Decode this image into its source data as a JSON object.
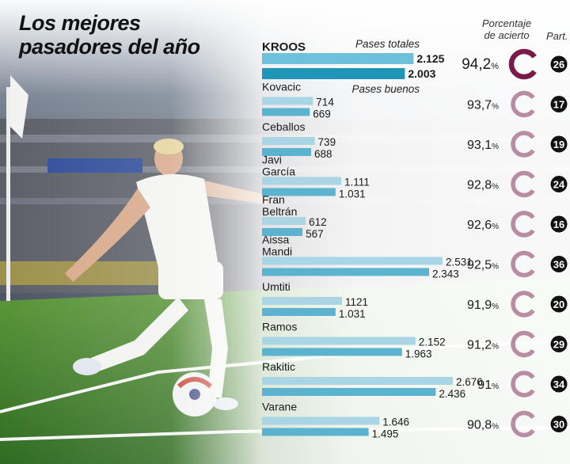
{
  "title_line1": "Los mejores",
  "title_line2": "pasadores del año",
  "headers": {
    "pct_line1": "Porcentaje",
    "pct_line2": "de acierto",
    "part": "Part."
  },
  "legend": {
    "total": "Pases totales",
    "good": "Pases buenos"
  },
  "colors": {
    "bar_total": "#a9d5e4",
    "bar_good": "#5cb3d0",
    "bar_total_highlight": "#6ec0db",
    "bar_good_highlight": "#1f96b8",
    "ring_highlight": "#7a1a49",
    "ring_default": "#b88da3"
  },
  "chart_data": {
    "type": "bar",
    "title": "Los mejores pasadores del año",
    "series": [
      {
        "name": "Pases totales",
        "values": [
          2125,
          714,
          739,
          1111,
          612,
          2531,
          1121,
          2152,
          2676,
          1646
        ]
      },
      {
        "name": "Pases buenos",
        "values": [
          2003,
          669,
          688,
          1031,
          567,
          2343,
          1031,
          1963,
          2436,
          1495
        ]
      }
    ],
    "categories": [
      "KROOS",
      "Kovacic",
      "Ceballos",
      "Javi García",
      "Fran Beltrán",
      "Aissa Mandi",
      "Umtiti",
      "Ramos",
      "Rakitic",
      "Varane"
    ],
    "players": [
      {
        "name_lines": [
          "KROOS"
        ],
        "total": 2125,
        "good": 2003,
        "total_label": "2.125",
        "good_label": "2.003",
        "pct": 94.2,
        "pct_label": "94,2",
        "matches": "26",
        "highlight": true
      },
      {
        "name_lines": [
          "Kovacic"
        ],
        "total": 714,
        "good": 669,
        "total_label": "714",
        "good_label": "669",
        "pct": 93.7,
        "pct_label": "93,7",
        "matches": "17",
        "highlight": false
      },
      {
        "name_lines": [
          "Ceballos"
        ],
        "total": 739,
        "good": 688,
        "total_label": "739",
        "good_label": "688",
        "pct": 93.1,
        "pct_label": "93,1",
        "matches": "19",
        "highlight": false
      },
      {
        "name_lines": [
          "Javi",
          "García"
        ],
        "total": 1111,
        "good": 1031,
        "total_label": "1.111",
        "good_label": "1.031",
        "pct": 92.8,
        "pct_label": "92,8",
        "matches": "24",
        "highlight": false
      },
      {
        "name_lines": [
          "Fran",
          "Beltrán"
        ],
        "total": 612,
        "good": 567,
        "total_label": "612",
        "good_label": "567",
        "pct": 92.6,
        "pct_label": "92,6",
        "matches": "16",
        "highlight": false
      },
      {
        "name_lines": [
          "Aissa",
          "Mandi"
        ],
        "total": 2531,
        "good": 2343,
        "total_label": "2.531",
        "good_label": "2.343",
        "pct": 92.5,
        "pct_label": "92,5",
        "matches": "36",
        "highlight": false
      },
      {
        "name_lines": [
          "Umtiti"
        ],
        "total": 1121,
        "good": 1031,
        "total_label": "1121",
        "good_label": "1.031",
        "pct": 91.9,
        "pct_label": "91,9",
        "matches": "20",
        "highlight": false
      },
      {
        "name_lines": [
          "Ramos"
        ],
        "total": 2152,
        "good": 1963,
        "total_label": "2.152",
        "good_label": "1.963",
        "pct": 91.2,
        "pct_label": "91,2",
        "matches": "29",
        "highlight": false
      },
      {
        "name_lines": [
          "Rakitic"
        ],
        "total": 2676,
        "good": 2436,
        "total_label": "2.676",
        "good_label": "2.436",
        "pct": 91,
        "pct_label": "91",
        "matches": "34",
        "highlight": false
      },
      {
        "name_lines": [
          "Varane"
        ],
        "total": 1646,
        "good": 1495,
        "total_label": "1.646",
        "good_label": "1.495",
        "pct": 90.8,
        "pct_label": "90,8",
        "matches": "30",
        "highlight": false
      }
    ],
    "pct_unit": "%",
    "xlim": [
      0,
      2800
    ],
    "legend_placement": "inline"
  }
}
